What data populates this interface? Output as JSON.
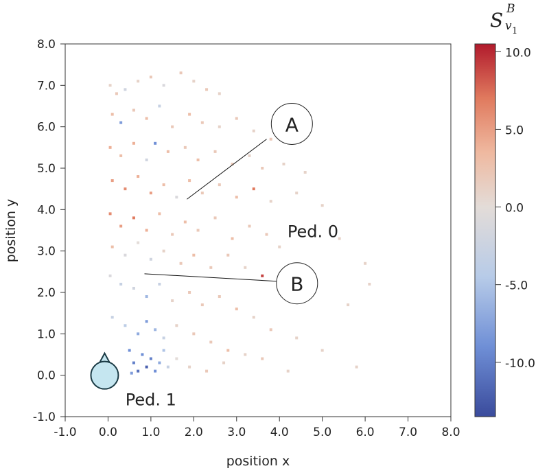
{
  "chart_data": {
    "type": "scatter",
    "xlabel": "position x",
    "ylabel": "position y",
    "xlim": [
      -1.0,
      8.0
    ],
    "ylim": [
      -1.0,
      8.0
    ],
    "xticks": [
      "-1.0",
      "0.0",
      "1.0",
      "2.0",
      "3.0",
      "4.0",
      "5.0",
      "6.0",
      "7.0",
      "8.0"
    ],
    "yticks": [
      "-1.0",
      "0.0",
      "1.0",
      "2.0",
      "3.0",
      "4.0",
      "5.0",
      "6.0",
      "7.0",
      "8.0"
    ],
    "grid": false,
    "colorbar": {
      "label": "S",
      "label_sup": "B",
      "label_sub": "v",
      "label_sub_sub": "1",
      "range": [
        -13.5,
        10.5
      ],
      "ticks": [
        "10.0",
        "5.0",
        "0.0",
        "-5.0",
        "-10.0"
      ],
      "tick_values": [
        10,
        5,
        0,
        -5,
        -10
      ],
      "colormap": [
        "#3a4b9c",
        "#6f8fd6",
        "#b7cbe8",
        "#e3dcd8",
        "#efb9a0",
        "#e07a5e",
        "#b11a2c"
      ]
    },
    "points_note_columns": [
      "x",
      "y",
      "value"
    ],
    "points": [
      [
        0.05,
        7.0,
        1
      ],
      [
        0.2,
        6.8,
        2
      ],
      [
        0.4,
        6.9,
        -2
      ],
      [
        0.7,
        7.1,
        1
      ],
      [
        1.0,
        7.2,
        2
      ],
      [
        1.3,
        7.0,
        -1
      ],
      [
        1.7,
        7.3,
        2
      ],
      [
        2.0,
        7.1,
        1
      ],
      [
        2.3,
        6.9,
        2
      ],
      [
        2.6,
        6.8,
        1
      ],
      [
        0.1,
        6.3,
        3
      ],
      [
        0.3,
        6.1,
        -8
      ],
      [
        0.6,
        6.4,
        2
      ],
      [
        0.9,
        6.2,
        3
      ],
      [
        1.2,
        6.5,
        -3
      ],
      [
        1.5,
        6.0,
        2
      ],
      [
        1.9,
        6.3,
        3
      ],
      [
        2.2,
        6.1,
        2
      ],
      [
        2.6,
        6.0,
        1
      ],
      [
        3.0,
        6.2,
        2
      ],
      [
        3.4,
        5.9,
        1
      ],
      [
        3.8,
        5.7,
        2
      ],
      [
        0.05,
        5.5,
        4
      ],
      [
        0.3,
        5.3,
        3
      ],
      [
        0.6,
        5.6,
        4
      ],
      [
        0.9,
        5.2,
        -2
      ],
      [
        1.1,
        5.6,
        -9
      ],
      [
        1.4,
        5.4,
        3
      ],
      [
        1.8,
        5.5,
        2
      ],
      [
        2.1,
        5.2,
        3
      ],
      [
        2.5,
        5.4,
        2
      ],
      [
        2.9,
        5.1,
        2
      ],
      [
        3.3,
        5.3,
        1
      ],
      [
        3.6,
        5.0,
        2
      ],
      [
        4.1,
        5.1,
        1
      ],
      [
        4.6,
        4.9,
        1
      ],
      [
        0.1,
        4.7,
        5
      ],
      [
        0.4,
        4.5,
        6
      ],
      [
        0.7,
        4.8,
        4
      ],
      [
        1.0,
        4.4,
        5
      ],
      [
        1.3,
        4.6,
        3
      ],
      [
        1.6,
        4.3,
        -1
      ],
      [
        1.9,
        4.7,
        3
      ],
      [
        2.2,
        4.4,
        2
      ],
      [
        2.6,
        4.6,
        2
      ],
      [
        3.0,
        4.3,
        3
      ],
      [
        3.4,
        4.5,
        7
      ],
      [
        3.8,
        4.2,
        1
      ],
      [
        4.4,
        4.4,
        1
      ],
      [
        5.0,
        4.1,
        1
      ],
      [
        0.05,
        3.9,
        6
      ],
      [
        0.3,
        3.6,
        5
      ],
      [
        0.6,
        3.8,
        7
      ],
      [
        0.9,
        3.5,
        4
      ],
      [
        1.2,
        3.9,
        3
      ],
      [
        1.5,
        3.4,
        2
      ],
      [
        1.8,
        3.7,
        3
      ],
      [
        2.1,
        3.5,
        2
      ],
      [
        2.5,
        3.8,
        2
      ],
      [
        2.9,
        3.3,
        3
      ],
      [
        3.3,
        3.6,
        2
      ],
      [
        3.7,
        3.4,
        2
      ],
      [
        4.0,
        3.1,
        1
      ],
      [
        5.4,
        3.3,
        1
      ],
      [
        6.0,
        2.7,
        1
      ],
      [
        0.1,
        3.1,
        3
      ],
      [
        0.4,
        2.9,
        -1
      ],
      [
        0.7,
        3.2,
        0
      ],
      [
        1.0,
        2.8,
        -2
      ],
      [
        1.3,
        3.0,
        1
      ],
      [
        1.7,
        2.7,
        2
      ],
      [
        2.0,
        2.9,
        3
      ],
      [
        2.4,
        2.6,
        2
      ],
      [
        2.8,
        2.9,
        2
      ],
      [
        3.2,
        2.6,
        1
      ],
      [
        3.6,
        2.4,
        9
      ],
      [
        4.1,
        2.0,
        1
      ],
      [
        4.6,
        2.2,
        1
      ],
      [
        5.6,
        1.7,
        1
      ],
      [
        6.1,
        2.2,
        1
      ],
      [
        0.05,
        2.4,
        -1
      ],
      [
        0.3,
        2.2,
        -3
      ],
      [
        0.6,
        2.1,
        -2
      ],
      [
        0.9,
        1.9,
        -6
      ],
      [
        1.2,
        2.2,
        -3
      ],
      [
        1.5,
        1.8,
        1
      ],
      [
        1.9,
        2.0,
        2
      ],
      [
        2.2,
        1.7,
        2
      ],
      [
        2.6,
        1.9,
        2
      ],
      [
        3.0,
        1.6,
        3
      ],
      [
        3.4,
        1.4,
        1
      ],
      [
        3.8,
        1.1,
        2
      ],
      [
        4.4,
        0.9,
        1
      ],
      [
        5.0,
        0.6,
        1
      ],
      [
        0.1,
        1.4,
        -3
      ],
      [
        0.4,
        1.2,
        -4
      ],
      [
        0.7,
        1.0,
        -7
      ],
      [
        0.9,
        1.3,
        -8
      ],
      [
        1.1,
        1.1,
        -6
      ],
      [
        1.3,
        0.9,
        -3
      ],
      [
        1.6,
        1.2,
        1
      ],
      [
        2.0,
        1.0,
        2
      ],
      [
        2.4,
        0.8,
        2
      ],
      [
        2.8,
        0.6,
        3
      ],
      [
        3.2,
        0.5,
        1
      ],
      [
        3.6,
        0.4,
        2
      ],
      [
        4.2,
        0.1,
        1
      ],
      [
        5.8,
        0.2,
        1
      ],
      [
        0.5,
        0.6,
        -9
      ],
      [
        0.6,
        0.3,
        -10
      ],
      [
        0.7,
        0.1,
        -11
      ],
      [
        0.8,
        0.5,
        -9
      ],
      [
        0.9,
        0.2,
        -12
      ],
      [
        1.0,
        0.4,
        -10
      ],
      [
        1.1,
        0.1,
        -9
      ],
      [
        1.2,
        0.3,
        -7
      ],
      [
        1.3,
        0.6,
        -5
      ],
      [
        1.4,
        0.2,
        -3
      ],
      [
        0.55,
        0.05,
        -8
      ],
      [
        1.6,
        0.4,
        0
      ],
      [
        1.9,
        0.2,
        1
      ],
      [
        2.3,
        0.1,
        2
      ],
      [
        2.7,
        0.3,
        1
      ]
    ],
    "annotations": [
      {
        "label": "A",
        "circle": [
          4.29,
          6.07
        ],
        "line": [
          [
            3.7,
            5.7
          ],
          [
            1.84,
            4.25
          ]
        ]
      },
      {
        "label": "B",
        "circle": [
          4.41,
          2.22
        ],
        "line": [
          [
            3.93,
            2.27
          ],
          [
            0.85,
            2.45
          ]
        ]
      }
    ],
    "text_labels": [
      {
        "text": "Ped. 0",
        "at": [
          4.78,
          3.48
        ]
      },
      {
        "text": "Ped. 1",
        "at": [
          1.0,
          -0.58
        ]
      }
    ],
    "pedestrian_marker": {
      "label": "Ped. 1",
      "at": [
        -0.08,
        0.0
      ],
      "color": "#c5e6f0"
    }
  }
}
